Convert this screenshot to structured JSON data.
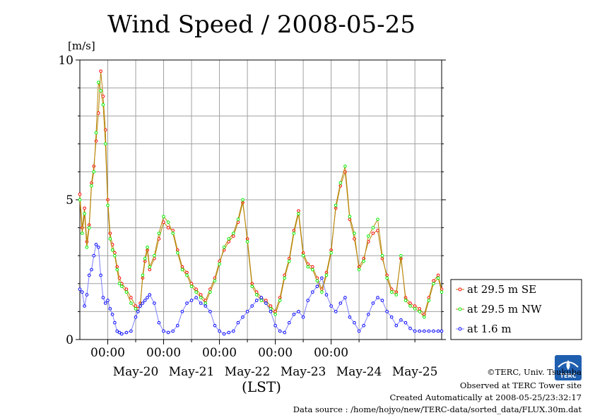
{
  "title": "Wind Speed / 2008-05-25",
  "y_unit": "[m/s]",
  "x_label": "(LST)",
  "credits": {
    "copyright": "©TERC, Univ. Tsukuba",
    "observed": "Observed at TERC Tower site",
    "created": "Created Automatically at 2008-05-25/23:32:17",
    "source": "Data source : /home/hojyo/new/TERC-data/sorted_data/FLUX.30m.dat"
  },
  "logo_text": "TERC",
  "colors": {
    "se": "#ff0000",
    "nw": "#00ee00",
    "low": "#0000ff",
    "line_upper": "#b8860b",
    "line_low": "#8080ff",
    "grid": "#a0a0a0"
  },
  "chart_data": {
    "type": "line",
    "title": "Wind Speed / 2008-05-25",
    "ylabel": "[m/s]",
    "xlabel": "(LST)",
    "ylim": [
      0,
      10
    ],
    "yticks": [
      "0",
      "5",
      "10"
    ],
    "xlim": [
      "2008-05-19 12:00",
      "2008-05-25 23:30"
    ],
    "x_time_ticks": [
      "00:00",
      "00:00",
      "00:00",
      "00:00",
      "00:00"
    ],
    "x_day_labels": [
      "May-20",
      "May-21",
      "May-22",
      "May-23",
      "May-24",
      "May-25"
    ],
    "grid": true,
    "legend_position": "right",
    "series": [
      {
        "name": "at 29.5 m SE",
        "x": [
          "2008-05-19 12:00",
          "2008-05-19 13:00",
          "2008-05-19 14:00",
          "2008-05-19 15:00",
          "2008-05-19 16:00",
          "2008-05-19 17:00",
          "2008-05-19 18:00",
          "2008-05-19 19:00",
          "2008-05-19 20:00",
          "2008-05-19 21:00",
          "2008-05-19 22:00",
          "2008-05-19 23:00",
          "2008-05-20 00:00",
          "2008-05-20 01:00",
          "2008-05-20 02:00",
          "2008-05-20 03:00",
          "2008-05-20 04:00",
          "2008-05-20 05:00",
          "2008-05-20 06:00",
          "2008-05-20 08:00",
          "2008-05-20 10:00",
          "2008-05-20 12:00",
          "2008-05-20 13:00",
          "2008-05-20 14:00",
          "2008-05-20 15:00",
          "2008-05-20 16:00",
          "2008-05-20 17:00",
          "2008-05-20 18:00",
          "2008-05-20 20:00",
          "2008-05-20 22:00",
          "2008-05-21 00:00",
          "2008-05-21 02:00",
          "2008-05-21 04:00",
          "2008-05-21 06:00",
          "2008-05-21 08:00",
          "2008-05-21 10:00",
          "2008-05-21 12:00",
          "2008-05-21 14:00",
          "2008-05-21 16:00",
          "2008-05-21 18:00",
          "2008-05-21 20:00",
          "2008-05-21 22:00",
          "2008-05-22 00:00",
          "2008-05-22 02:00",
          "2008-05-22 04:00",
          "2008-05-22 06:00",
          "2008-05-22 08:00",
          "2008-05-22 10:00",
          "2008-05-22 12:00",
          "2008-05-22 14:00",
          "2008-05-22 16:00",
          "2008-05-22 18:00",
          "2008-05-22 20:00",
          "2008-05-22 22:00",
          "2008-05-23 00:00",
          "2008-05-23 02:00",
          "2008-05-23 04:00",
          "2008-05-23 06:00",
          "2008-05-23 08:00",
          "2008-05-23 10:00",
          "2008-05-23 12:00",
          "2008-05-23 14:00",
          "2008-05-23 16:00",
          "2008-05-23 18:00",
          "2008-05-23 20:00",
          "2008-05-23 22:00",
          "2008-05-24 00:00",
          "2008-05-24 02:00",
          "2008-05-24 04:00",
          "2008-05-24 06:00",
          "2008-05-24 08:00",
          "2008-05-24 10:00",
          "2008-05-24 12:00",
          "2008-05-24 14:00",
          "2008-05-24 16:00",
          "2008-05-24 18:00",
          "2008-05-24 20:00",
          "2008-05-24 22:00",
          "2008-05-25 00:00",
          "2008-05-25 02:00",
          "2008-05-25 04:00",
          "2008-05-25 06:00",
          "2008-05-25 08:00",
          "2008-05-25 10:00",
          "2008-05-25 12:00",
          "2008-05-25 14:00",
          "2008-05-25 16:00",
          "2008-05-25 18:00",
          "2008-05-25 20:00",
          "2008-05-25 22:00",
          "2008-05-25 23:30"
        ],
        "values": [
          5.2,
          4.0,
          4.7,
          3.5,
          4.1,
          5.6,
          6.2,
          7.1,
          8.1,
          9.6,
          8.7,
          7.5,
          5.0,
          3.8,
          3.4,
          3.1,
          2.6,
          2.2,
          2.0,
          1.8,
          1.5,
          1.2,
          1.1,
          1.3,
          2.2,
          2.8,
          3.2,
          2.5,
          2.9,
          3.6,
          4.2,
          4.0,
          3.9,
          3.2,
          2.6,
          2.4,
          2.0,
          1.8,
          1.6,
          1.4,
          1.8,
          2.2,
          2.8,
          3.2,
          3.5,
          3.7,
          4.2,
          4.9,
          3.6,
          2.0,
          1.7,
          1.5,
          1.4,
          1.2,
          1.0,
          1.5,
          2.3,
          2.9,
          3.9,
          4.6,
          3.1,
          2.7,
          2.6,
          2.2,
          1.8,
          2.4,
          3.2,
          4.7,
          5.5,
          6.0,
          4.3,
          3.6,
          2.6,
          2.9,
          3.5,
          3.8,
          3.9,
          2.9,
          2.3,
          1.8,
          1.7,
          2.9,
          1.5,
          1.3,
          1.2,
          1.1,
          0.9,
          1.5,
          2.1,
          2.3,
          1.8
        ]
      },
      {
        "name": "at 29.5 m NW",
        "x": [
          "2008-05-19 12:00",
          "2008-05-19 13:00",
          "2008-05-19 14:00",
          "2008-05-19 15:00",
          "2008-05-19 16:00",
          "2008-05-19 17:00",
          "2008-05-19 18:00",
          "2008-05-19 19:00",
          "2008-05-19 20:00",
          "2008-05-19 21:00",
          "2008-05-19 22:00",
          "2008-05-19 23:00",
          "2008-05-20 00:00",
          "2008-05-20 01:00",
          "2008-05-20 02:00",
          "2008-05-20 03:00",
          "2008-05-20 04:00",
          "2008-05-20 05:00",
          "2008-05-20 06:00",
          "2008-05-20 08:00",
          "2008-05-20 10:00",
          "2008-05-20 12:00",
          "2008-05-20 13:00",
          "2008-05-20 14:00",
          "2008-05-20 15:00",
          "2008-05-20 16:00",
          "2008-05-20 17:00",
          "2008-05-20 18:00",
          "2008-05-20 20:00",
          "2008-05-20 22:00",
          "2008-05-21 00:00",
          "2008-05-21 02:00",
          "2008-05-21 04:00",
          "2008-05-21 06:00",
          "2008-05-21 08:00",
          "2008-05-21 10:00",
          "2008-05-21 12:00",
          "2008-05-21 14:00",
          "2008-05-21 16:00",
          "2008-05-21 18:00",
          "2008-05-21 20:00",
          "2008-05-21 22:00",
          "2008-05-22 00:00",
          "2008-05-22 02:00",
          "2008-05-22 04:00",
          "2008-05-22 06:00",
          "2008-05-22 08:00",
          "2008-05-22 10:00",
          "2008-05-22 12:00",
          "2008-05-22 14:00",
          "2008-05-22 16:00",
          "2008-05-22 18:00",
          "2008-05-22 20:00",
          "2008-05-22 22:00",
          "2008-05-23 00:00",
          "2008-05-23 02:00",
          "2008-05-23 04:00",
          "2008-05-23 06:00",
          "2008-05-23 08:00",
          "2008-05-23 10:00",
          "2008-05-23 12:00",
          "2008-05-23 14:00",
          "2008-05-23 16:00",
          "2008-05-23 18:00",
          "2008-05-23 20:00",
          "2008-05-23 22:00",
          "2008-05-24 00:00",
          "2008-05-24 02:00",
          "2008-05-24 04:00",
          "2008-05-24 06:00",
          "2008-05-24 08:00",
          "2008-05-24 10:00",
          "2008-05-24 12:00",
          "2008-05-24 14:00",
          "2008-05-24 16:00",
          "2008-05-24 18:00",
          "2008-05-24 20:00",
          "2008-05-24 22:00",
          "2008-05-25 00:00",
          "2008-05-25 02:00",
          "2008-05-25 04:00",
          "2008-05-25 06:00",
          "2008-05-25 08:00",
          "2008-05-25 10:00",
          "2008-05-25 12:00",
          "2008-05-25 14:00",
          "2008-05-25 16:00",
          "2008-05-25 18:00",
          "2008-05-25 20:00",
          "2008-05-25 22:00",
          "2008-05-25 23:30"
        ],
        "values": [
          5.0,
          3.8,
          4.5,
          3.3,
          4.0,
          5.5,
          6.0,
          7.4,
          9.2,
          8.9,
          8.4,
          7.0,
          4.8,
          3.6,
          3.2,
          3.0,
          2.5,
          2.0,
          1.9,
          1.7,
          1.3,
          1.1,
          1.0,
          1.2,
          2.3,
          2.9,
          3.3,
          2.6,
          3.0,
          3.8,
          4.4,
          4.2,
          3.8,
          3.1,
          2.5,
          2.3,
          1.9,
          1.7,
          1.5,
          1.3,
          1.7,
          2.1,
          2.7,
          3.3,
          3.6,
          3.8,
          4.3,
          5.0,
          3.5,
          1.9,
          1.6,
          1.4,
          1.3,
          1.1,
          0.9,
          1.4,
          2.2,
          2.8,
          3.8,
          4.5,
          3.0,
          2.6,
          2.5,
          2.1,
          1.7,
          2.3,
          3.1,
          4.8,
          5.6,
          6.2,
          4.4,
          3.8,
          2.5,
          2.8,
          3.7,
          4.0,
          4.3,
          3.0,
          2.2,
          1.7,
          1.6,
          3.0,
          1.4,
          1.2,
          1.1,
          1.0,
          0.8,
          1.4,
          2.0,
          2.2,
          1.7
        ]
      },
      {
        "name": "at 1.6 m",
        "x": [
          "2008-05-19 12:00",
          "2008-05-19 13:00",
          "2008-05-19 14:00",
          "2008-05-19 15:00",
          "2008-05-19 16:00",
          "2008-05-19 17:00",
          "2008-05-19 18:00",
          "2008-05-19 19:00",
          "2008-05-19 20:00",
          "2008-05-19 21:00",
          "2008-05-19 22:00",
          "2008-05-19 23:00",
          "2008-05-20 00:00",
          "2008-05-20 01:00",
          "2008-05-20 02:00",
          "2008-05-20 03:00",
          "2008-05-20 04:00",
          "2008-05-20 05:00",
          "2008-05-20 06:00",
          "2008-05-20 08:00",
          "2008-05-20 10:00",
          "2008-05-20 12:00",
          "2008-05-20 13:00",
          "2008-05-20 14:00",
          "2008-05-20 15:00",
          "2008-05-20 16:00",
          "2008-05-20 17:00",
          "2008-05-20 18:00",
          "2008-05-20 20:00",
          "2008-05-20 22:00",
          "2008-05-21 00:00",
          "2008-05-21 02:00",
          "2008-05-21 04:00",
          "2008-05-21 06:00",
          "2008-05-21 08:00",
          "2008-05-21 10:00",
          "2008-05-21 12:00",
          "2008-05-21 14:00",
          "2008-05-21 16:00",
          "2008-05-21 18:00",
          "2008-05-21 20:00",
          "2008-05-21 22:00",
          "2008-05-22 00:00",
          "2008-05-22 02:00",
          "2008-05-22 04:00",
          "2008-05-22 06:00",
          "2008-05-22 08:00",
          "2008-05-22 10:00",
          "2008-05-22 12:00",
          "2008-05-22 14:00",
          "2008-05-22 16:00",
          "2008-05-22 18:00",
          "2008-05-22 20:00",
          "2008-05-22 22:00",
          "2008-05-23 00:00",
          "2008-05-23 02:00",
          "2008-05-23 04:00",
          "2008-05-23 06:00",
          "2008-05-23 08:00",
          "2008-05-23 10:00",
          "2008-05-23 12:00",
          "2008-05-23 14:00",
          "2008-05-23 16:00",
          "2008-05-23 18:00",
          "2008-05-23 20:00",
          "2008-05-23 22:00",
          "2008-05-24 00:00",
          "2008-05-24 02:00",
          "2008-05-24 04:00",
          "2008-05-24 06:00",
          "2008-05-24 08:00",
          "2008-05-24 10:00",
          "2008-05-24 12:00",
          "2008-05-24 14:00",
          "2008-05-24 16:00",
          "2008-05-24 18:00",
          "2008-05-24 20:00",
          "2008-05-24 22:00",
          "2008-05-25 00:00",
          "2008-05-25 02:00",
          "2008-05-25 04:00",
          "2008-05-25 06:00",
          "2008-05-25 08:00",
          "2008-05-25 10:00",
          "2008-05-25 12:00",
          "2008-05-25 14:00",
          "2008-05-25 16:00",
          "2008-05-25 18:00",
          "2008-05-25 20:00",
          "2008-05-25 22:00",
          "2008-05-25 23:30"
        ],
        "values": [
          1.8,
          1.7,
          1.2,
          1.6,
          2.3,
          2.5,
          3.0,
          3.4,
          3.3,
          2.3,
          1.5,
          1.3,
          1.4,
          1.1,
          0.9,
          0.6,
          0.3,
          0.25,
          0.2,
          0.25,
          0.3,
          0.8,
          1.0,
          1.2,
          1.3,
          1.4,
          1.5,
          1.6,
          1.3,
          0.6,
          0.3,
          0.25,
          0.3,
          0.5,
          1.0,
          1.3,
          1.4,
          1.5,
          1.3,
          1.2,
          1.0,
          0.5,
          0.3,
          0.2,
          0.25,
          0.3,
          0.6,
          0.8,
          1.0,
          1.2,
          1.4,
          1.5,
          1.3,
          1.0,
          0.5,
          0.3,
          0.25,
          0.6,
          0.9,
          1.0,
          0.8,
          1.4,
          1.7,
          1.9,
          2.2,
          1.6,
          1.2,
          1.0,
          1.3,
          1.5,
          0.8,
          0.6,
          0.3,
          0.5,
          0.9,
          1.3,
          1.5,
          1.4,
          1.0,
          0.8,
          0.5,
          0.7,
          0.6,
          0.4,
          0.3,
          0.3,
          0.3,
          0.3,
          0.3,
          0.3,
          0.3
        ]
      }
    ]
  }
}
